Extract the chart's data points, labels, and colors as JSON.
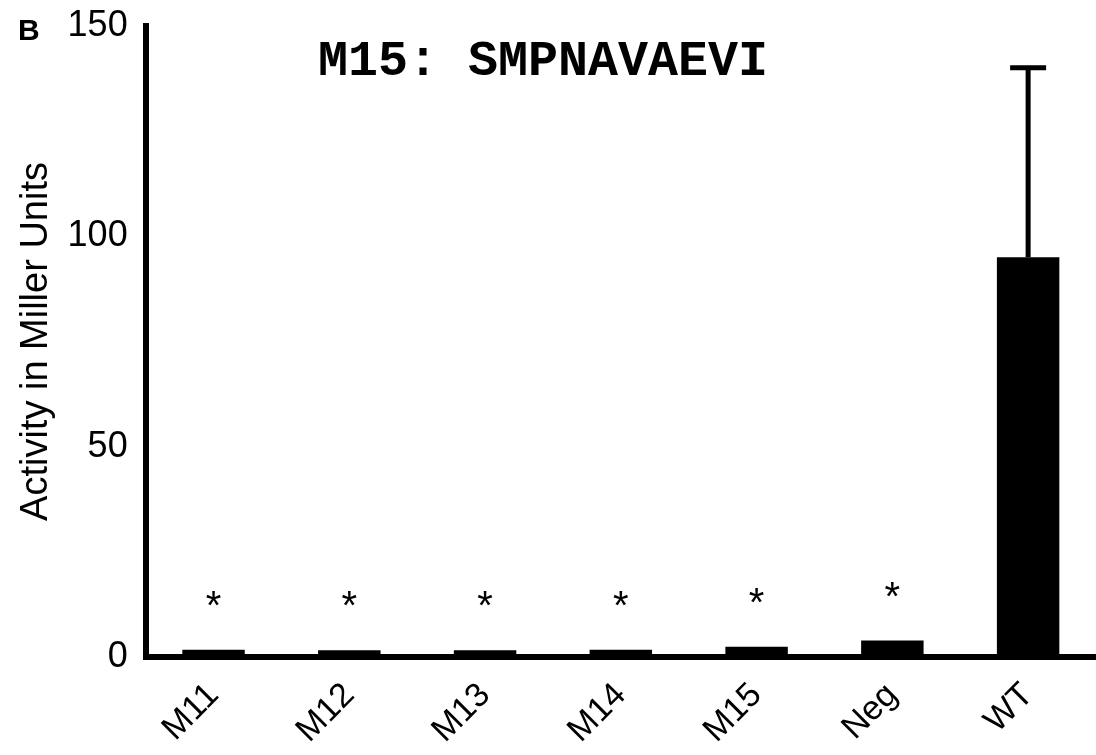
{
  "chart_data": {
    "type": "bar",
    "ylabel": "Activity in Miller Units",
    "categories": [
      "M11",
      "M12",
      "M13",
      "M14",
      "M15",
      "Neg",
      "WT"
    ],
    "values": [
      1.8,
      1.7,
      1.7,
      1.8,
      2.5,
      4,
      95
    ],
    "errors": [
      null,
      null,
      null,
      null,
      null,
      null,
      [
        95,
        140
      ]
    ],
    "color": "#000000",
    "ylim": [
      0,
      150
    ],
    "yticks": [
      0,
      50,
      100,
      150
    ],
    "grid": false,
    "legend": false,
    "annotations": [
      "B",
      "M15: SMPNAVAEVI",
      "*",
      "*",
      "*",
      "*",
      "*",
      "*"
    ]
  }
}
